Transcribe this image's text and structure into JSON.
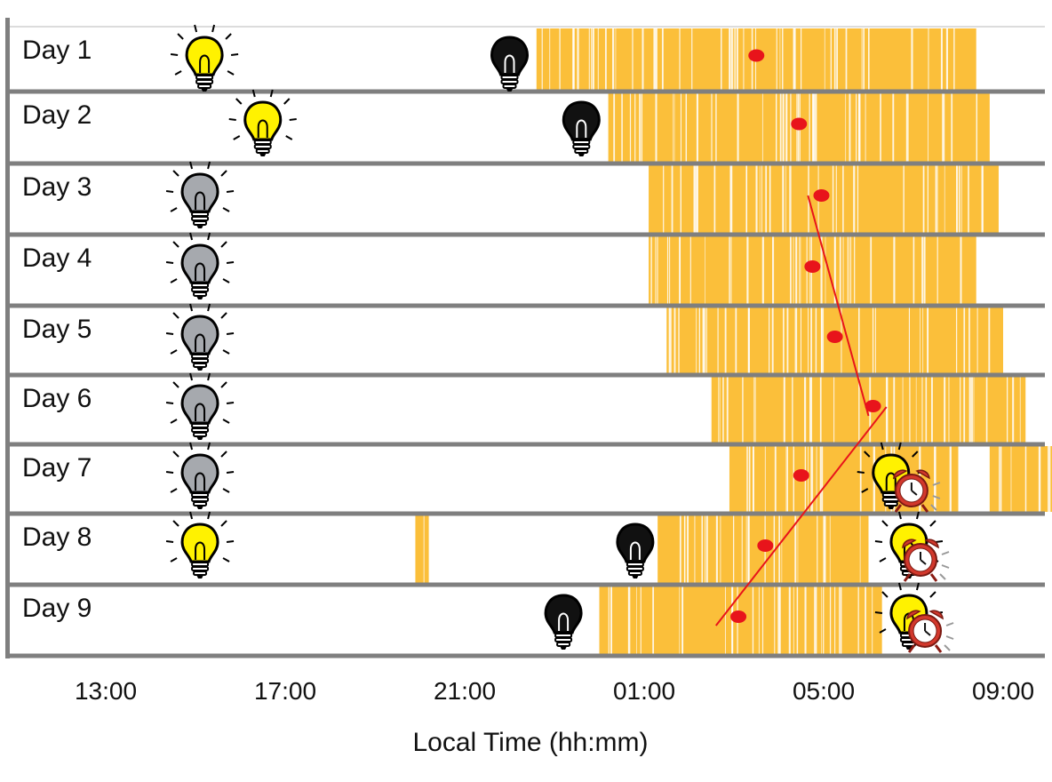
{
  "chart_data": {
    "type": "actogram",
    "xlabel": "Local Time (hh:mm)",
    "x_ticks": [
      "13:00",
      "17:00",
      "21:00",
      "01:00",
      "05:00",
      "09:00"
    ],
    "x_range_hours": [
      11.3,
      34.0
    ],
    "colors": {
      "activity": "#FBBF3A",
      "midpoint": "#E8141B",
      "trend_line": "#E8141B",
      "separator": "#7F7F7F",
      "bulb_on": "#FFF200",
      "bulb_dim": "#A6A9AE",
      "bulb_off": "#111111",
      "alarm": "#D2382C"
    },
    "days": [
      {
        "label": "Day 1",
        "sleep_blocks": [
          [
            22.6,
            32.4
          ]
        ],
        "midpoint": 27.5,
        "light_on": 15.2,
        "light_on_state": "on",
        "light_off": 22.0,
        "alarm": null
      },
      {
        "label": "Day 2",
        "sleep_blocks": [
          [
            24.2,
            32.7
          ]
        ],
        "midpoint": 28.45,
        "light_on": 16.5,
        "light_on_state": "on",
        "light_off": 23.6,
        "alarm": null
      },
      {
        "label": "Day 3",
        "sleep_blocks": [
          [
            25.1,
            32.9
          ]
        ],
        "midpoint": 28.95,
        "light_on": 15.1,
        "light_on_state": "dim",
        "light_off": null,
        "alarm": null
      },
      {
        "label": "Day 4",
        "sleep_blocks": [
          [
            25.1,
            32.4
          ]
        ],
        "midpoint": 28.75,
        "light_on": 15.1,
        "light_on_state": "dim",
        "light_off": null,
        "alarm": null
      },
      {
        "label": "Day 5",
        "sleep_blocks": [
          [
            25.5,
            33.0
          ]
        ],
        "midpoint": 29.25,
        "light_on": 15.1,
        "light_on_state": "dim",
        "light_off": null,
        "alarm": null
      },
      {
        "label": "Day 6",
        "sleep_blocks": [
          [
            26.5,
            33.5
          ]
        ],
        "midpoint": 30.1,
        "light_on": 15.1,
        "light_on_state": "dim",
        "light_off": null,
        "alarm": null
      },
      {
        "label": "Day 7",
        "sleep_blocks": [
          [
            26.9,
            32.0
          ],
          [
            32.7,
            34.4
          ]
        ],
        "midpoint": 28.5,
        "light_on": 15.1,
        "light_on_state": "dim",
        "light_off": null,
        "wake_light": 30.5,
        "alarm": 30.8
      },
      {
        "label": "Day 8",
        "sleep_blocks": [
          [
            19.9,
            20.2
          ],
          [
            25.3,
            30.0
          ]
        ],
        "midpoint": 27.7,
        "light_on": 15.1,
        "light_on_state": "on",
        "light_off": 24.8,
        "wake_light": 30.9,
        "alarm": 31.0
      },
      {
        "label": "Day 9",
        "sleep_blocks": [
          [
            24.0,
            30.3
          ]
        ],
        "midpoint": 27.1,
        "light_on": null,
        "light_on_state": null,
        "light_off": 23.2,
        "wake_light": 30.9,
        "alarm": 31.1
      }
    ],
    "trend_segments": [
      {
        "from": {
          "day": 3,
          "hour": 28.65
        },
        "to": {
          "day": 6,
          "hour": 30.0
        }
      },
      {
        "from": {
          "day": 6,
          "hour": 30.4
        },
        "to": {
          "day": 9,
          "hour": 26.6
        }
      }
    ]
  }
}
